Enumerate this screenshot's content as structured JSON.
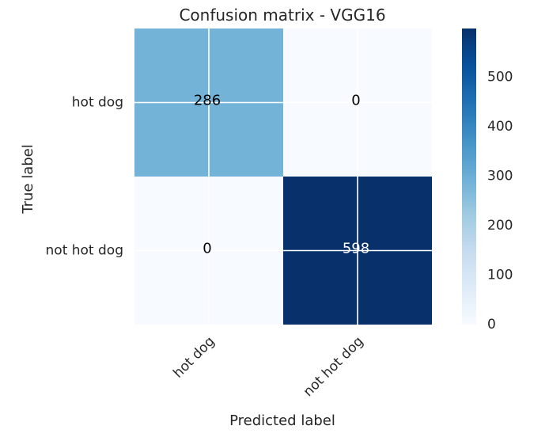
{
  "chart_data": {
    "type": "heatmap",
    "title": "Confusion matrix - VGG16",
    "xlabel": "Predicted label",
    "ylabel": "True label",
    "x_categories": [
      "hot dog",
      "not hot dog"
    ],
    "y_categories": [
      "hot dog",
      "not hot dog"
    ],
    "values": [
      [
        286,
        0
      ],
      [
        0,
        598
      ]
    ],
    "colormap": "Blues",
    "colorbar": {
      "min": 0,
      "max": 598,
      "ticks": [
        0,
        100,
        200,
        300,
        400,
        500
      ]
    },
    "colors": {
      "low": "#f7fbff",
      "high": "#08306b",
      "grid": "#ffffff",
      "text": "#262626"
    },
    "grid": true
  }
}
